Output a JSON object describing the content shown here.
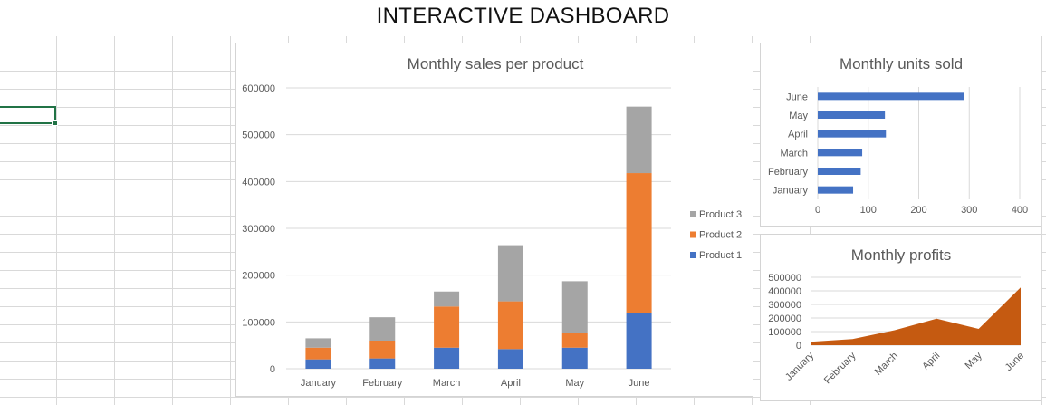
{
  "dashboard": {
    "title": "INTERACTIVE DASHBOARD"
  },
  "colors": {
    "product1": "#4472c4",
    "product2": "#ed7d31",
    "product3": "#a5a5a5",
    "units_bar": "#4472c4",
    "profit_area": "#c55a11",
    "grid": "#d9d9d9",
    "cell_select": "#217346"
  },
  "chart_data": [
    {
      "type": "bar",
      "stacked": true,
      "orientation": "vertical",
      "title": "Monthly sales per product",
      "categories": [
        "January",
        "February",
        "March",
        "April",
        "May",
        "June"
      ],
      "series": [
        {
          "name": "Product 1",
          "values": [
            20000,
            22000,
            45000,
            42000,
            45000,
            120000
          ]
        },
        {
          "name": "Product 2",
          "values": [
            25000,
            38000,
            88000,
            102000,
            32000,
            298000
          ]
        },
        {
          "name": "Product 3",
          "values": [
            20000,
            50000,
            32000,
            120000,
            110000,
            142000
          ]
        }
      ],
      "ylim": [
        0,
        600000
      ],
      "yticks": [
        0,
        100000,
        200000,
        300000,
        400000,
        500000,
        600000
      ],
      "legend": "right",
      "legend_entries": [
        "Product 3",
        "Product 2",
        "Product 1"
      ],
      "grid": true
    },
    {
      "type": "bar",
      "orientation": "horizontal",
      "title": "Monthly units sold",
      "categories": [
        "January",
        "February",
        "March",
        "April",
        "May",
        "June"
      ],
      "values": [
        70,
        85,
        88,
        135,
        133,
        290
      ],
      "xlim": [
        0,
        400
      ],
      "xticks": [
        0,
        100,
        200,
        300,
        400
      ],
      "grid": true
    },
    {
      "type": "area",
      "title": "Monthly profits",
      "categories": [
        "January",
        "February",
        "March",
        "April",
        "May",
        "June"
      ],
      "values": [
        25000,
        45000,
        110000,
        195000,
        120000,
        425000
      ],
      "ylim": [
        0,
        500000
      ],
      "yticks": [
        0,
        100000,
        200000,
        300000,
        400000,
        500000
      ],
      "grid": true
    }
  ]
}
